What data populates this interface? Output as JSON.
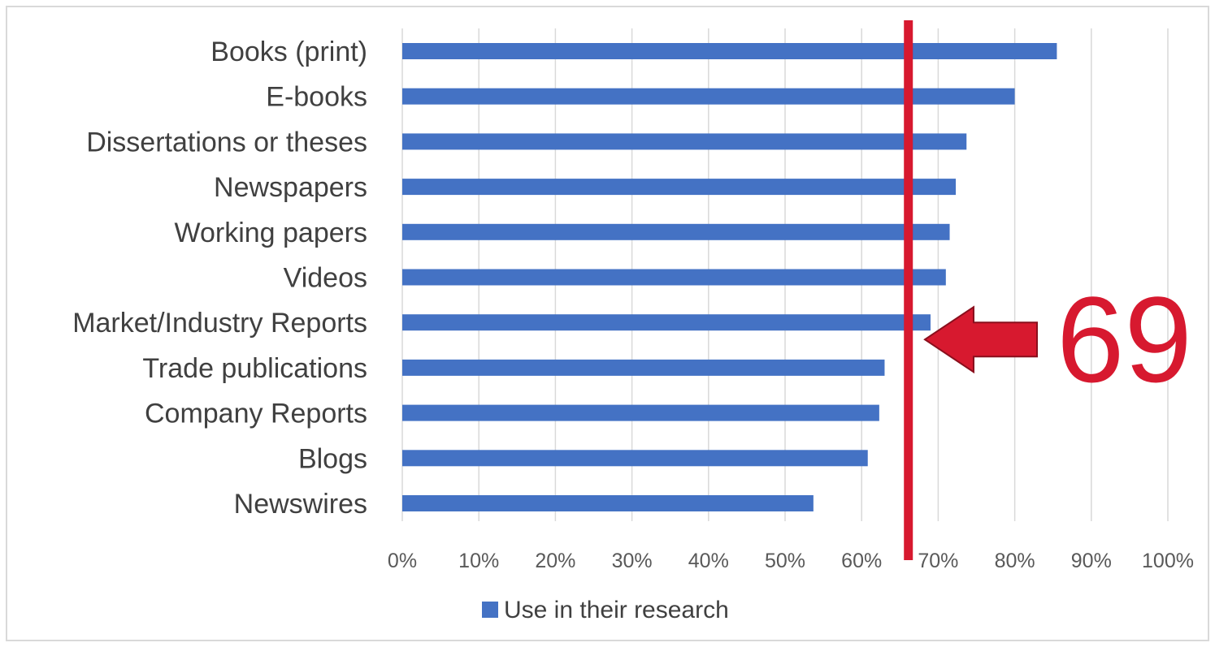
{
  "chart_data": {
    "type": "bar",
    "orientation": "horizontal",
    "title": "",
    "xlabel": "",
    "ylabel": "",
    "categories": [
      "Books (print)",
      "E-books",
      "Dissertations or theses",
      "Newspapers",
      "Working papers",
      "Videos",
      "Market/Industry Reports",
      "Trade publications",
      "Company Reports",
      "Blogs",
      "Newswires"
    ],
    "series": [
      {
        "name": "Use in their research",
        "color": "#4472C4",
        "values": [
          85.5,
          80,
          73.7,
          72.3,
          71.5,
          71,
          69,
          63,
          62.3,
          60.8,
          53.7
        ]
      }
    ],
    "xlim": [
      0,
      100
    ],
    "xticks": [
      0,
      10,
      20,
      30,
      40,
      50,
      60,
      70,
      80,
      90,
      100
    ],
    "xtick_labels": [
      "0%",
      "10%",
      "20%",
      "30%",
      "40%",
      "50%",
      "60%",
      "70%",
      "80%",
      "90%",
      "100%"
    ],
    "grid": true,
    "legend": {
      "position": "bottom",
      "entries": [
        "Use in their research"
      ]
    },
    "annotations": {
      "reference_line": {
        "x": 66,
        "color": "#D7192F"
      },
      "callout": {
        "text": "69",
        "target_category": "Market/Industry Reports",
        "target_value": 69,
        "color": "#D7192F"
      }
    }
  }
}
